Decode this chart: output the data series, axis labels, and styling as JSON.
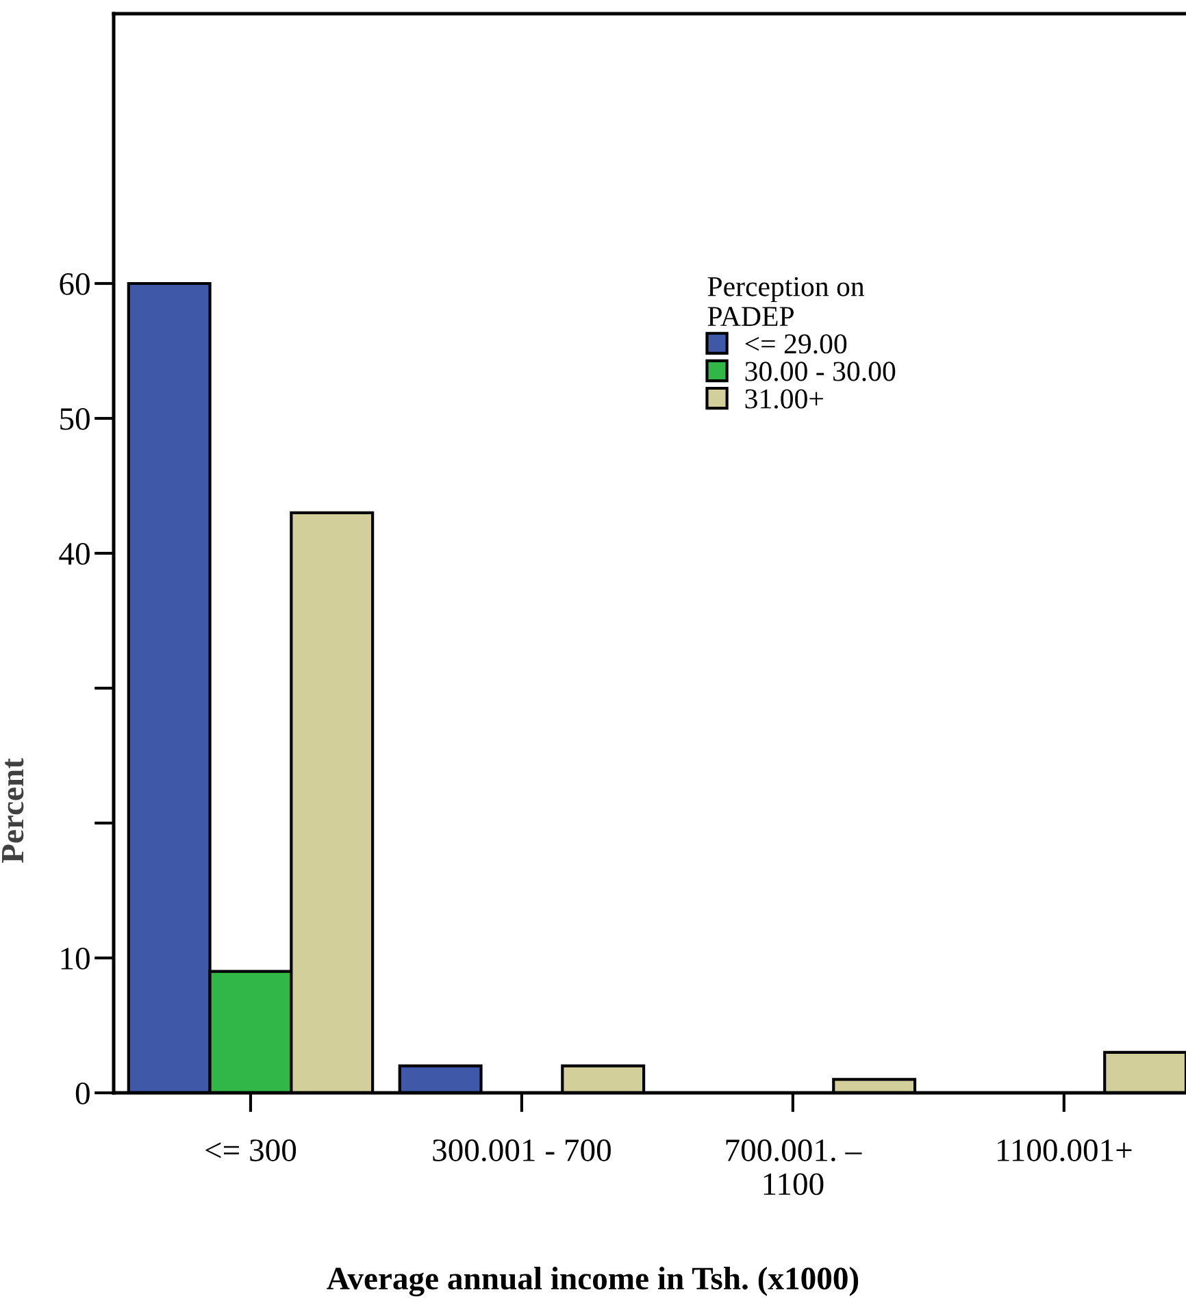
{
  "chart_data": {
    "type": "bar",
    "xlabel": "Average annual income in Tsh. (x1000)",
    "ylabel": "Percent",
    "categories": [
      "<= 300",
      "300.001 - 700",
      "700.001. –\n1100",
      "1100.001+"
    ],
    "legend_title": "Perception on\nPADEP",
    "legend": "top right",
    "series": [
      {
        "name": "<= 29.00",
        "color": "#3f58a8",
        "values": [
          60,
          2,
          null,
          null
        ]
      },
      {
        "name": "30.00 - 30.00",
        "color": "#31b648",
        "values": [
          9,
          null,
          null,
          null
        ]
      },
      {
        "name": "31.00+",
        "color": "#d3cf9a",
        "values": [
          43,
          2,
          1,
          3
        ]
      }
    ],
    "ylim": [
      0,
      80
    ],
    "yticks": [
      0,
      10,
      {
        "value": 20,
        "label": null
      },
      {
        "value": 30,
        "label": null
      },
      40,
      50,
      60
    ],
    "grid": false
  }
}
